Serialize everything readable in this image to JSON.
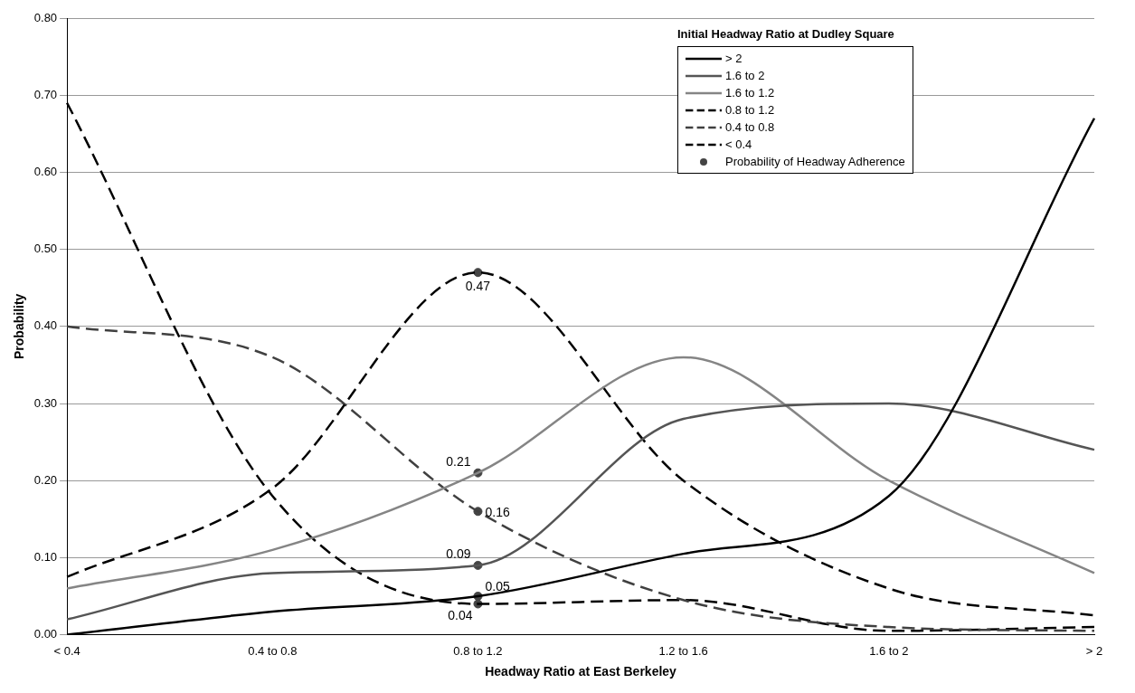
{
  "chart_data": {
    "type": "line",
    "xlabel": "Headway Ratio at East Berkeley",
    "ylabel": "Probability",
    "legend_title": "Initial Headway Ratio at Dudley Square",
    "categories": [
      "< 0.4",
      "0.4 to 0.8",
      "0.8 to 1.2",
      "1.2 to 1.6",
      "1.6 to 2",
      "> 2"
    ],
    "series": [
      {
        "name": "> 2",
        "color": "#000000",
        "line_style": "solid",
        "values": [
          0.0,
          0.03,
          0.05,
          0.105,
          0.18,
          0.67
        ]
      },
      {
        "name": "1.6 to 2",
        "color": "#555555",
        "line_style": "solid",
        "values": [
          0.02,
          0.08,
          0.09,
          0.28,
          0.3,
          0.24
        ]
      },
      {
        "name": "1.6 to 1.2",
        "color": "#858585",
        "line_style": "solid",
        "values": [
          0.06,
          0.11,
          0.21,
          0.36,
          0.2,
          0.08
        ]
      },
      {
        "name": "0.8 to 1.2",
        "color": "#000000",
        "line_style": "dashed",
        "values": [
          0.075,
          0.19,
          0.47,
          0.2,
          0.06,
          0.025
        ]
      },
      {
        "name": "0.4 to 0.8",
        "color": "#404040",
        "line_style": "dashed",
        "values": [
          0.4,
          0.36,
          0.16,
          0.045,
          0.01,
          0.005
        ]
      },
      {
        "name": "< 0.4",
        "color": "#000000",
        "line_style": "dashed",
        "values": [
          0.69,
          0.18,
          0.04,
          0.045,
          0.005,
          0.01
        ]
      },
      {
        "name": "Probability of Headway Adherence",
        "type": "scatter",
        "marker": "circle",
        "color": "#444444",
        "x": [
          "0.8 to 1.2",
          "0.8 to 1.2",
          "0.8 to 1.2",
          "0.8 to 1.2",
          "0.8 to 1.2",
          "0.8 to 1.2"
        ],
        "values": [
          0.47,
          0.21,
          0.16,
          0.09,
          0.05,
          0.04
        ],
        "value_labels": [
          "0.47",
          "0.21",
          "0.16",
          "0.09",
          "0.05",
          "0.04"
        ]
      }
    ],
    "ylim": [
      0,
      0.8
    ],
    "yticks": [
      {
        "value": 0,
        "label": "0.00"
      },
      {
        "value": 0.1,
        "label": "0.10"
      },
      {
        "value": 0.2,
        "label": "0.20"
      },
      {
        "value": 0.3,
        "label": "0.30"
      },
      {
        "value": 0.4,
        "label": "0.40"
      },
      {
        "value": 0.5,
        "label": "0.50"
      },
      {
        "value": 0.6,
        "label": "0.60"
      },
      {
        "value": 0.7,
        "label": "0.70"
      },
      {
        "value": 0.8,
        "label": "0.80"
      }
    ],
    "grid": "y",
    "legend": "top right"
  }
}
